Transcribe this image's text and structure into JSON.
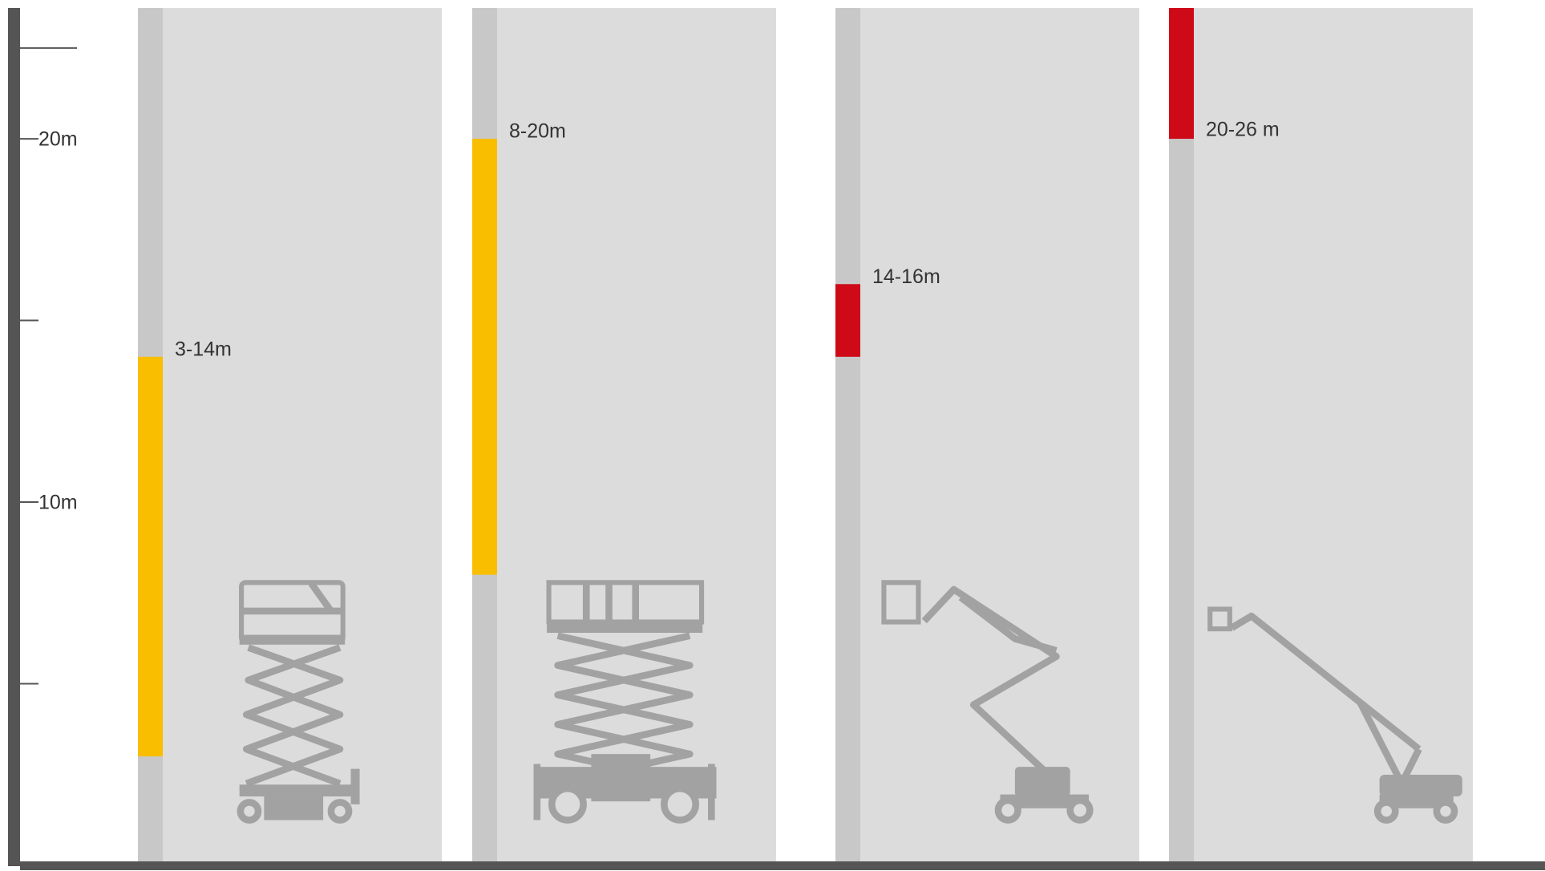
{
  "chart_data": {
    "type": "range-bar",
    "categories": [
      null,
      null,
      null,
      null
    ],
    "low": [
      3,
      8,
      14,
      20
    ],
    "high": [
      14,
      20,
      16,
      26
    ],
    "value_labels": [
      "3-14m",
      "8-20m",
      "14-16m",
      "20-26 m"
    ],
    "colors": [
      "#f9be00",
      "#f9be00",
      "#cf0a18",
      "#cf0a18"
    ],
    "ylim": [
      0,
      23.6
    ],
    "yticks": [
      {
        "value": 10,
        "label": "10m"
      },
      {
        "value": 20,
        "label": "20m"
      }
    ],
    "minor_yticks": [
      5,
      15,
      22.5
    ]
  }
}
